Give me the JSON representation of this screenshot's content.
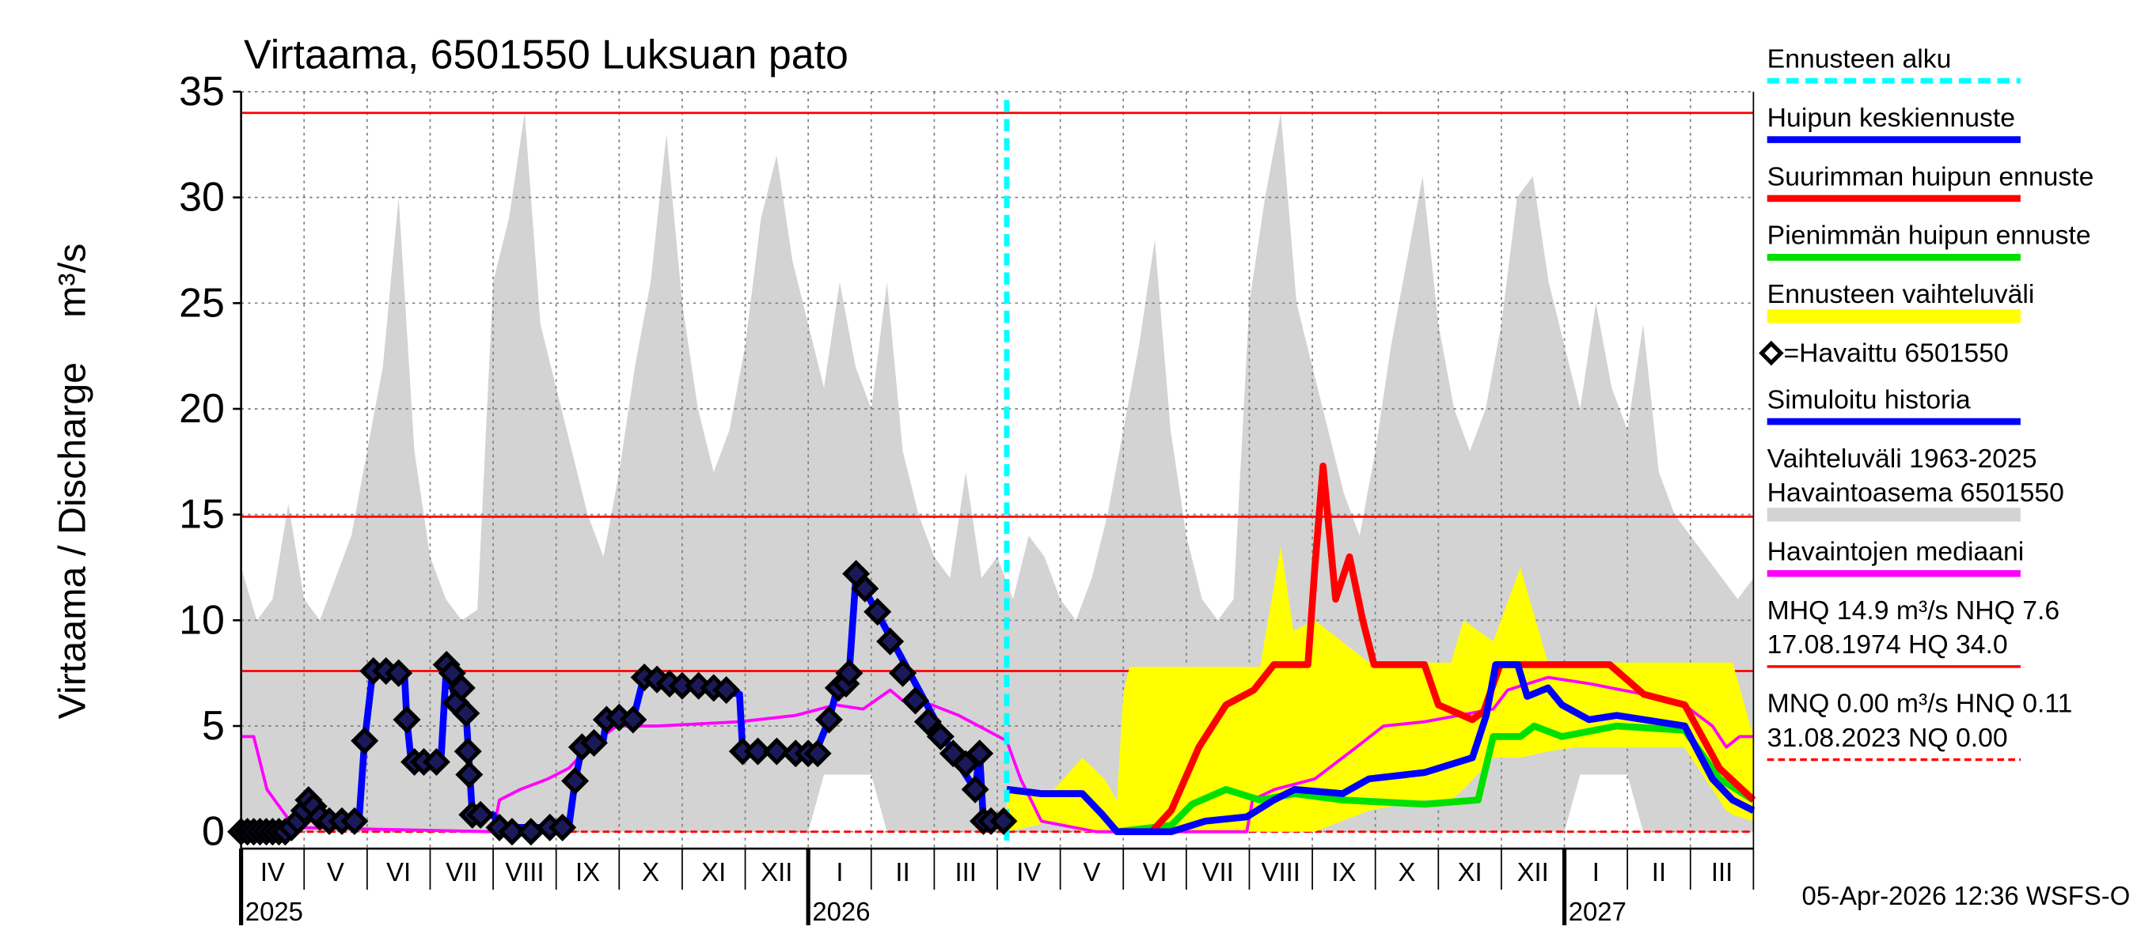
{
  "chart_data": {
    "type": "line",
    "title": "Virtaama, 6501550 Luksuan pato",
    "y_label": "Virtaama / Discharge",
    "y_unit": "m³/s",
    "footer": "05-Apr-2026 12:36 WSFS-O",
    "xlim": [
      0,
      24
    ],
    "ylim": [
      -0.8,
      35
    ],
    "yticks": [
      0,
      5,
      10,
      15,
      20,
      25,
      30,
      35
    ],
    "grid": true,
    "xticks": [
      {
        "value": 0.5,
        "label": "IV"
      },
      {
        "value": 1.5,
        "label": "V"
      },
      {
        "value": 2.5,
        "label": "VI"
      },
      {
        "value": 3.5,
        "label": "VII"
      },
      {
        "value": 4.5,
        "label": "VIII"
      },
      {
        "value": 5.5,
        "label": "IX"
      },
      {
        "value": 6.5,
        "label": "X"
      },
      {
        "value": 7.5,
        "label": "XI"
      },
      {
        "value": 8.5,
        "label": "XII"
      },
      {
        "value": 9.5,
        "label": "I"
      },
      {
        "value": 10.5,
        "label": "II"
      },
      {
        "value": 11.5,
        "label": "III"
      },
      {
        "value": 12.5,
        "label": "IV"
      },
      {
        "value": 13.5,
        "label": "V"
      },
      {
        "value": 14.5,
        "label": "VI"
      },
      {
        "value": 15.5,
        "label": "VII"
      },
      {
        "value": 16.5,
        "label": "VIII"
      },
      {
        "value": 17.5,
        "label": "IX"
      },
      {
        "value": 18.5,
        "label": "X"
      },
      {
        "value": 19.5,
        "label": "XI"
      },
      {
        "value": 20.5,
        "label": "XII"
      },
      {
        "value": 21.5,
        "label": "I"
      },
      {
        "value": 22.5,
        "label": "II"
      },
      {
        "value": 23.5,
        "label": "III"
      }
    ],
    "xgrid": [
      1,
      2,
      3,
      4,
      5,
      6,
      7,
      8,
      9,
      10,
      11,
      12,
      13,
      14,
      15,
      16,
      17,
      18,
      19,
      20,
      21,
      22,
      23
    ],
    "year_labels": [
      {
        "value": 0,
        "label": "2025"
      },
      {
        "value": 9,
        "label": "2026"
      },
      {
        "value": 21,
        "label": "2027"
      }
    ],
    "series": [
      {
        "name": "Ennusteen alku",
        "kind": "vline",
        "color": "#00ffff",
        "x": 12.15
      },
      {
        "name": "Huipun keskiennuste",
        "kind": "line",
        "color": "#0000ff",
        "x": [
          12.15,
          12.7,
          13.35,
          13.67,
          13.9,
          14.76,
          15.3,
          15.96,
          16.39,
          16.72,
          17.48,
          17.9,
          18.78,
          19.54,
          19.76,
          19.91,
          20.26,
          20.41,
          20.74,
          20.96,
          21.39,
          21.83,
          22.91,
          23.35,
          23.67,
          24
        ],
        "values": [
          2.0,
          1.8,
          1.8,
          0.8,
          0,
          0,
          0.5,
          0.7,
          1.5,
          2.0,
          1.8,
          2.5,
          2.8,
          3.5,
          5.5,
          7.9,
          7.9,
          6.4,
          6.8,
          6.0,
          5.3,
          5.5,
          5.0,
          2.5,
          1.5,
          1.0
        ]
      },
      {
        "name": "Suurimman huipun ennuste",
        "kind": "line",
        "color": "#ff0000",
        "x": [
          12.15,
          12.7,
          13.35,
          13.67,
          13.9,
          14.45,
          14.76,
          15.2,
          15.63,
          16.07,
          16.39,
          16.93,
          17.04,
          17.17,
          17.37,
          17.59,
          17.8,
          17.98,
          18.78,
          19.0,
          19.54,
          19.72,
          19.98,
          21.72,
          22.26,
          22.91,
          23.46,
          24
        ],
        "values": [
          2.0,
          1.8,
          1.8,
          0.8,
          0,
          0,
          1.0,
          4.0,
          6.0,
          6.7,
          7.9,
          7.9,
          12.5,
          17.3,
          11,
          13,
          10,
          7.9,
          7.9,
          6.0,
          5.3,
          5.7,
          7.9,
          7.9,
          6.5,
          6.0,
          3.0,
          1.5
        ]
      },
      {
        "name": "Pienimmän huipun ennuste",
        "kind": "line",
        "color": "#00e000",
        "x": [
          12.15,
          12.7,
          13.35,
          13.67,
          13.9,
          14.76,
          15.09,
          15.63,
          16.17,
          16.72,
          17.48,
          18.78,
          19.63,
          19.87,
          20.3,
          20.52,
          20.96,
          21.83,
          22.91,
          23.46,
          24
        ],
        "values": [
          2.0,
          1.8,
          1.8,
          0.8,
          0,
          0.3,
          1.3,
          2.0,
          1.5,
          1.8,
          1.5,
          1.3,
          1.5,
          4.5,
          4.5,
          5.0,
          4.5,
          5.0,
          4.8,
          2.5,
          1.5
        ]
      },
      {
        "name": "Ennusteen vaihteluväli",
        "kind": "band",
        "color": "#ffff00",
        "x": [
          12.15,
          12.9,
          13.35,
          13.7,
          13.9,
          14.0,
          14.1,
          14.87,
          16.17,
          16.5,
          16.7,
          17.04,
          17.9,
          18.78,
          19.2,
          19.4,
          19.87,
          20.3,
          20.74,
          21.2,
          22.9,
          23.57,
          23.67,
          24
        ],
        "upper": [
          2.0,
          2.0,
          3.5,
          2.5,
          1.5,
          6.5,
          7.8,
          7.8,
          7.8,
          13.5,
          9.5,
          10,
          8,
          8,
          8,
          10,
          9,
          12.5,
          8,
          8,
          8,
          8,
          8,
          4.5
        ],
        "lower": [
          0,
          0.5,
          0,
          0,
          0,
          0,
          0,
          0,
          0,
          0,
          0,
          0,
          1.0,
          1.5,
          1.5,
          2.0,
          3.5,
          3.5,
          3.8,
          4.0,
          4.0,
          1.0,
          0.8,
          0.5
        ]
      },
      {
        "name": "=Havaittu 6501550",
        "kind": "markers",
        "color": "#000000",
        "x": [
          0,
          0.1,
          0.2,
          0.3,
          0.4,
          0.5,
          0.6,
          0.7,
          0.8,
          0.9,
          1.0,
          1.07,
          1.15,
          1.25,
          1.4,
          1.6,
          1.8,
          1.96,
          2.1,
          2.3,
          2.5,
          2.63,
          2.75,
          2.9,
          3.1,
          3.26,
          3.35,
          3.41,
          3.5,
          3.57,
          3.6,
          3.62,
          3.67,
          3.8,
          4.1,
          4.3,
          4.6,
          4.9,
          5.1,
          5.3,
          5.41,
          5.6,
          5.8,
          6.0,
          6.22,
          6.4,
          6.6,
          6.8,
          7.0,
          7.26,
          7.5,
          7.7,
          7.96,
          8.2,
          8.5,
          8.8,
          9.0,
          9.15,
          9.33,
          9.48,
          9.6,
          9.65,
          9.76,
          9.9,
          10.1,
          10.3,
          10.5,
          10.7,
          10.9,
          11.1,
          11.3,
          11.5,
          11.65,
          11.72,
          11.78,
          11.9,
          12.1
        ],
        "values": [
          0,
          0,
          0,
          0,
          0,
          0,
          0,
          0,
          0.2,
          0.5,
          1.0,
          1.5,
          1.2,
          0.7,
          0.5,
          0.5,
          0.5,
          4.3,
          7.6,
          7.6,
          7.5,
          5.3,
          3.3,
          3.3,
          3.3,
          7.9,
          7.5,
          6.1,
          6.8,
          5.6,
          3.8,
          2.7,
          0.8,
          0.8,
          0.2,
          0,
          0,
          0.2,
          0.2,
          2.4,
          4.0,
          4.2,
          5.3,
          5.4,
          5.3,
          7.3,
          7.2,
          7.0,
          6.9,
          6.9,
          6.8,
          6.7,
          3.8,
          3.8,
          3.8,
          3.7,
          3.7,
          3.7,
          5.3,
          6.8,
          7.0,
          7.5,
          12.2,
          11.5,
          10.4,
          9.0,
          7.5,
          6.2,
          5.2,
          4.5,
          3.7,
          3.2,
          2.0,
          3.7,
          0.5,
          0.5,
          0.5
        ]
      },
      {
        "name": "Simuloitu historia",
        "kind": "line",
        "color": "#0000ff",
        "x": [
          0,
          0.85,
          1.07,
          1.39,
          1.87,
          1.96,
          2.09,
          2.59,
          2.63,
          2.7,
          3.17,
          3.26,
          3.41,
          3.57,
          3.67,
          4.0,
          4.11,
          5.2,
          5.3,
          5.41,
          5.74,
          5.8,
          6.22,
          6.39,
          7.26,
          7.91,
          7.96,
          9.11,
          9.33,
          9.48,
          9.65,
          9.76,
          10.63,
          11.39,
          11.65,
          11.72,
          11.78,
          12.15
        ],
        "values": [
          0,
          0.2,
          1.2,
          0.5,
          0.5,
          4.3,
          7.6,
          7.6,
          5.3,
          3.3,
          3.3,
          7.9,
          6.1,
          5.6,
          0.8,
          0.8,
          0.2,
          0.2,
          2.4,
          4.0,
          4.2,
          5.3,
          5.3,
          7.3,
          6.9,
          6.5,
          3.8,
          3.7,
          5.3,
          7.0,
          7.5,
          12.2,
          7.4,
          3.2,
          2.0,
          3.7,
          0.5,
          0.5
        ]
      },
      {
        "name": [
          "Vaihteluväli 1963-2025",
          "Havaintoasema 6501550"
        ],
        "kind": "band",
        "color": "#d3d3d3",
        "x": [
          0,
          0.25,
          0.5,
          0.75,
          1,
          1.25,
          1.5,
          1.75,
          2,
          2.25,
          2.5,
          2.75,
          3,
          3.25,
          3.5,
          3.75,
          4,
          4.25,
          4.5,
          4.75,
          5,
          5.25,
          5.5,
          5.75,
          6,
          6.25,
          6.5,
          6.75,
          7,
          7.25,
          7.5,
          7.75,
          8,
          8.25,
          8.5,
          8.75,
          9,
          9.25,
          9.5,
          9.75,
          10,
          10.25,
          10.5,
          10.75,
          11,
          11.25,
          11.5,
          11.75,
          12,
          12.25,
          12.5,
          12.75,
          13,
          13.25,
          13.5,
          13.75,
          14,
          14.25,
          14.5,
          14.75,
          15,
          15.25,
          15.5,
          15.75,
          16,
          16.25,
          16.5,
          16.75,
          17,
          17.25,
          17.5,
          17.75,
          18,
          18.25,
          18.5,
          18.75,
          19,
          19.25,
          19.5,
          19.75,
          20,
          20.25,
          20.5,
          20.75,
          21,
          21.25,
          21.5,
          21.75,
          22,
          22.25,
          22.5,
          22.75,
          23,
          23.25,
          23.5,
          23.75,
          24
        ],
        "upper": [
          12.5,
          10,
          11,
          15.5,
          11,
          10,
          12,
          14,
          18,
          22,
          30,
          18,
          13,
          11,
          10,
          10.5,
          26,
          29,
          34,
          24,
          21,
          18,
          15,
          13,
          17,
          22,
          26,
          33,
          25,
          20,
          17,
          19,
          23,
          29,
          32,
          27,
          24,
          21,
          26,
          22,
          20,
          26,
          18,
          15,
          13,
          12,
          17,
          12,
          13,
          11,
          14,
          13,
          11,
          10,
          12,
          15,
          19,
          23,
          28,
          19,
          14,
          11,
          10,
          11,
          25,
          30,
          34,
          25,
          22,
          19,
          16,
          14,
          18,
          23,
          27,
          31,
          24,
          20,
          18,
          20,
          24,
          30,
          31,
          26,
          23,
          20,
          25,
          21,
          19,
          24,
          17,
          15,
          14,
          13,
          12,
          11,
          12
        ],
        "lower": [
          0,
          0,
          0,
          0,
          0,
          0,
          0,
          0,
          0,
          0,
          0,
          0,
          0,
          0,
          0,
          0,
          0,
          0,
          0,
          0,
          0,
          0,
          0,
          0,
          0,
          0,
          0,
          0,
          0,
          0,
          0,
          0,
          0,
          0,
          0,
          0,
          0,
          2.7,
          2.7,
          2.7,
          2.7,
          0,
          0,
          0,
          0,
          0,
          0,
          0,
          0,
          0,
          0,
          0,
          0,
          0,
          0,
          0,
          0,
          0,
          0,
          0,
          0,
          0,
          0,
          0,
          0,
          0,
          0,
          0,
          0,
          0,
          0,
          0,
          0,
          0,
          0,
          0,
          0,
          0,
          0,
          0,
          0,
          0,
          0,
          0,
          0,
          2.7,
          2.7,
          2.7,
          2.7,
          0,
          0,
          0,
          0,
          0,
          0,
          0,
          0
        ]
      },
      {
        "name": "Havaintojen mediaani",
        "kind": "line",
        "style": "thin",
        "color": "#ff00ff",
        "x": [
          0,
          0.2,
          0.41,
          0.85,
          4.0,
          4.1,
          4.43,
          4.87,
          5.2,
          5.52,
          5.96,
          6.6,
          7.9,
          8.8,
          9.43,
          9.87,
          10.3,
          10.5,
          10.96,
          11.39,
          12.15,
          12.37,
          12.7,
          13.57,
          15.96,
          16.05,
          16.4,
          17.04,
          17.7,
          18.13,
          18.78,
          19.87,
          20.1,
          20.74,
          21.4,
          22.26,
          22.9,
          23.35,
          23.57,
          23.78,
          24
        ],
        "values": [
          4.5,
          4.5,
          2.0,
          0.2,
          0,
          1.5,
          2.0,
          2.5,
          3.0,
          4.0,
          5.0,
          5.0,
          5.2,
          5.5,
          6.0,
          5.8,
          6.7,
          6.2,
          6.0,
          5.5,
          4.3,
          2.5,
          0.5,
          0,
          0,
          1.5,
          2.0,
          2.5,
          4.0,
          5.0,
          5.2,
          5.8,
          6.7,
          7.3,
          7.0,
          6.5,
          6.0,
          5.0,
          4.0,
          4.5,
          4.5
        ]
      }
    ],
    "reference_lines": [
      {
        "name": [
          "MHQ 14.9 m³/s NHQ  7.6",
          "17.08.1974 HQ 34.0"
        ],
        "color": "#ff0000",
        "dashed": false,
        "values": [
          34.0,
          14.9,
          7.6
        ]
      },
      {
        "name": [
          "MNQ 0.00 m³/s HNQ 0.11",
          "31.08.2023 NQ 0.00"
        ],
        "color": "#ff0000",
        "dashed": true,
        "values": [
          0
        ]
      }
    ]
  }
}
